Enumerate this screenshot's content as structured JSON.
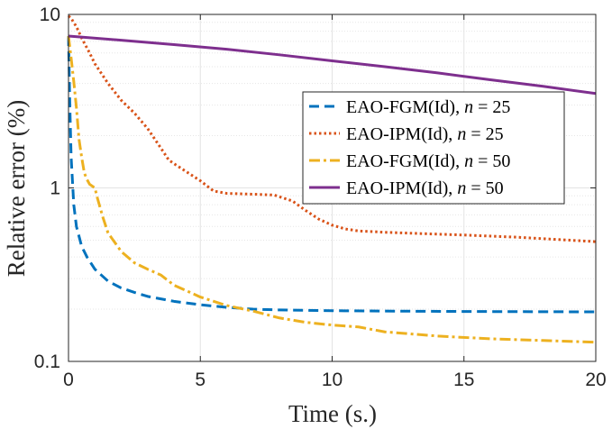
{
  "chart_data": {
    "type": "line",
    "title": "",
    "xlabel": "Time (s.)",
    "ylabel": "Relative error (%)",
    "xlim": [
      0,
      20
    ],
    "ylim": [
      0.1,
      10
    ],
    "yscale": "log",
    "grid": true,
    "legend_position": "top-right",
    "x_ticks": [
      0,
      5,
      10,
      15,
      20
    ],
    "x_tick_labels": [
      "0",
      "5",
      "10",
      "15",
      "20"
    ],
    "y_ticks": [
      0.1,
      1,
      10
    ],
    "y_tick_labels": [
      "0.1",
      "1",
      "10"
    ],
    "series": [
      {
        "name": "EAO-FGM(Id), n = 25",
        "label_main": "EAO-FGM(Id), ",
        "label_var": "n",
        "label_eq": " = 25",
        "color": "#0072BD",
        "dash": "dashed",
        "x": [
          0,
          0.05,
          0.1,
          0.2,
          0.3,
          0.5,
          0.7,
          1.0,
          1.5,
          2.0,
          2.5,
          3.0,
          4.0,
          5.0,
          6.0,
          7.0,
          8.0,
          10.0,
          12.0,
          15.0,
          20.0
        ],
        "y": [
          7.5,
          3.0,
          1.5,
          0.8,
          0.6,
          0.46,
          0.4,
          0.34,
          0.29,
          0.265,
          0.25,
          0.237,
          0.222,
          0.212,
          0.205,
          0.2,
          0.198,
          0.196,
          0.195,
          0.194,
          0.193
        ]
      },
      {
        "name": "EAO-IPM(Id), n = 25",
        "label_main": "EAO-IPM(Id), ",
        "label_var": "n",
        "label_eq": " = 25",
        "color": "#D95319",
        "dash": "dotted",
        "x": [
          0,
          0.1,
          0.3,
          0.5,
          0.8,
          1.0,
          1.5,
          2.0,
          2.5,
          3.0,
          3.5,
          3.8,
          4.0,
          5.0,
          5.5,
          6.0,
          7.0,
          7.8,
          8.5,
          9.0,
          9.5,
          10.0,
          10.5,
          11.0,
          12.0,
          13.0,
          15.0,
          17.0,
          20.0
        ],
        "y": [
          9.8,
          9.5,
          8.5,
          7.3,
          6.0,
          5.2,
          4.0,
          3.2,
          2.7,
          2.2,
          1.7,
          1.45,
          1.38,
          1.1,
          0.96,
          0.93,
          0.92,
          0.91,
          0.84,
          0.74,
          0.66,
          0.61,
          0.58,
          0.565,
          0.555,
          0.548,
          0.535,
          0.52,
          0.49
        ]
      },
      {
        "name": "EAO-FGM(Id), n = 50",
        "label_main": "EAO-FGM(Id), ",
        "label_var": "n",
        "label_eq": " = 50",
        "color": "#EDB120",
        "dash": "dashdot",
        "x": [
          0,
          0.1,
          0.2,
          0.3,
          0.4,
          0.5,
          0.6,
          0.7,
          0.8,
          1.0,
          1.1,
          1.3,
          1.5,
          2.0,
          2.5,
          3.0,
          3.5,
          4.0,
          5.0,
          6.0,
          7.0,
          8.0,
          9.0,
          10.0,
          11.0,
          12.0,
          14.0,
          16.0,
          18.0,
          20.0
        ],
        "y": [
          7.5,
          5.6,
          4.1,
          2.9,
          1.9,
          1.5,
          1.22,
          1.12,
          1.05,
          1.0,
          0.87,
          0.68,
          0.55,
          0.43,
          0.37,
          0.34,
          0.315,
          0.275,
          0.235,
          0.21,
          0.195,
          0.178,
          0.168,
          0.162,
          0.158,
          0.148,
          0.14,
          0.135,
          0.132,
          0.129
        ]
      },
      {
        "name": "EAO-IPM(Id), n = 50",
        "label_main": "EAO-IPM(Id), ",
        "label_var": "n",
        "label_eq": " = 50",
        "color": "#7E2F8E",
        "dash": "solid",
        "x": [
          0,
          2,
          4,
          6,
          8,
          10,
          12,
          14,
          16,
          18,
          20
        ],
        "y": [
          7.5,
          7.1,
          6.7,
          6.3,
          5.85,
          5.4,
          5.0,
          4.6,
          4.2,
          3.85,
          3.5
        ]
      }
    ]
  }
}
